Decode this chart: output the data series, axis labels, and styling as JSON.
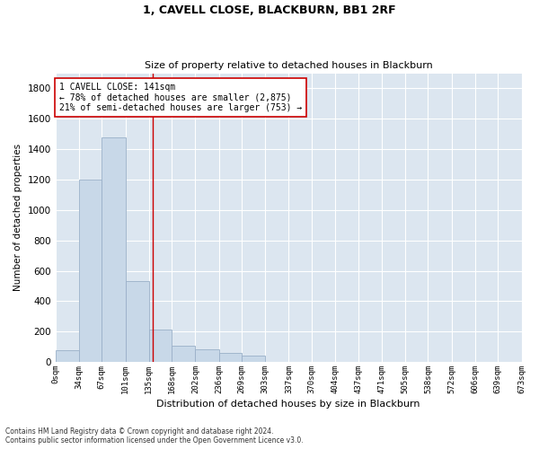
{
  "title": "1, CAVELL CLOSE, BLACKBURN, BB1 2RF",
  "subtitle": "Size of property relative to detached houses in Blackburn",
  "xlabel": "Distribution of detached houses by size in Blackburn",
  "ylabel": "Number of detached properties",
  "bar_color": "#c8d8e8",
  "bar_edge_color": "#9ab0c8",
  "background_color": "#dce6f0",
  "grid_color": "#ffffff",
  "vline_color": "#cc0000",
  "vline_x": 141,
  "annotation_text": "1 CAVELL CLOSE: 141sqm\n← 78% of detached houses are smaller (2,875)\n21% of semi-detached houses are larger (753) →",
  "annotation_box_color": "#ffffff",
  "annotation_box_edge": "#cc0000",
  "bin_edges": [
    0,
    34,
    67,
    101,
    135,
    168,
    202,
    236,
    269,
    303,
    337,
    370,
    404,
    437,
    471,
    505,
    538,
    572,
    606,
    639,
    673
  ],
  "bin_labels": [
    "0sqm",
    "34sqm",
    "67sqm",
    "101sqm",
    "135sqm",
    "168sqm",
    "202sqm",
    "236sqm",
    "269sqm",
    "303sqm",
    "337sqm",
    "370sqm",
    "404sqm",
    "437sqm",
    "471sqm",
    "505sqm",
    "538sqm",
    "572sqm",
    "606sqm",
    "639sqm",
    "673sqm"
  ],
  "bar_heights": [
    75,
    1200,
    1480,
    535,
    210,
    105,
    80,
    60,
    40,
    0,
    0,
    0,
    0,
    0,
    0,
    0,
    0,
    0,
    0,
    0
  ],
  "ylim": [
    0,
    1900
  ],
  "yticks": [
    0,
    200,
    400,
    600,
    800,
    1000,
    1200,
    1400,
    1600,
    1800
  ],
  "footnote1": "Contains HM Land Registry data © Crown copyright and database right 2024.",
  "footnote2": "Contains public sector information licensed under the Open Government Licence v3.0."
}
